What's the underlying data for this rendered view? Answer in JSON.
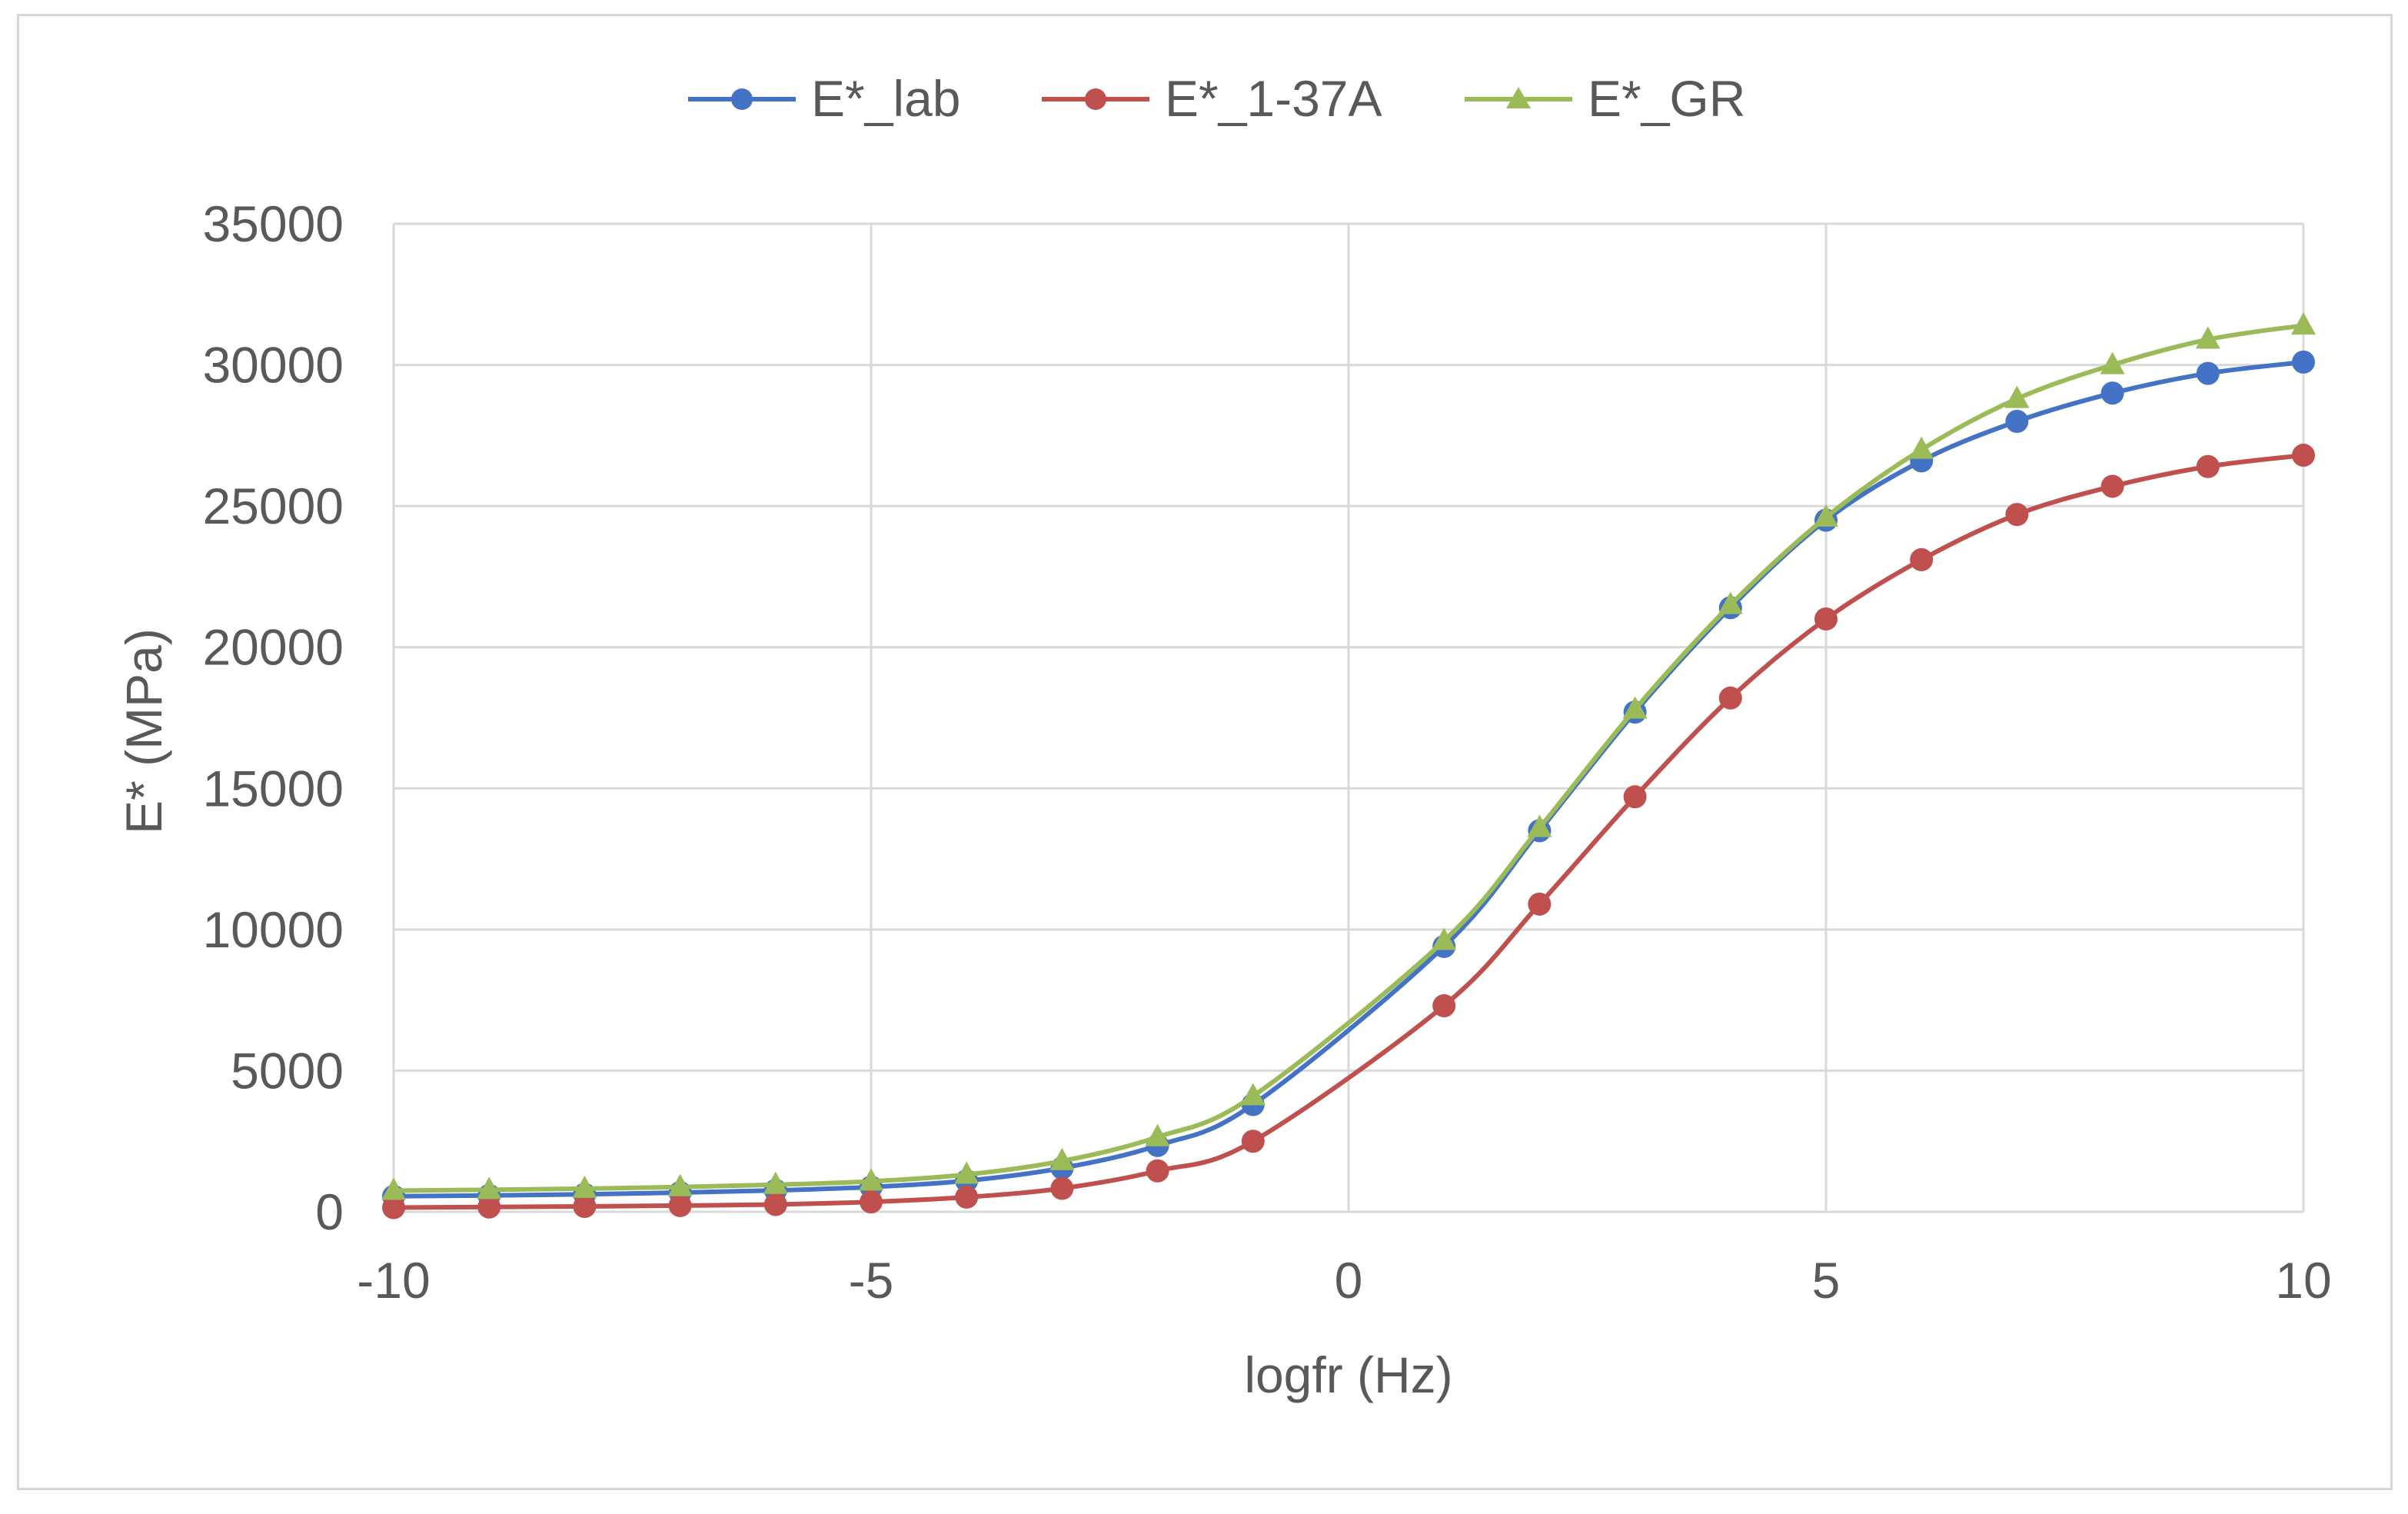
{
  "chart_data": {
    "type": "line",
    "title": "",
    "xlabel": "logfr (Hz)",
    "ylabel": "E* (MPa)",
    "xlim": [
      -10,
      10
    ],
    "ylim": [
      0,
      35000
    ],
    "xticks": [
      -10,
      -5,
      0,
      5,
      10
    ],
    "yticks": [
      0,
      5000,
      10000,
      15000,
      20000,
      25000,
      30000,
      35000
    ],
    "x_tick_labels": [
      "-10",
      "-5",
      "0",
      "5",
      "10"
    ],
    "y_tick_labels": [
      "0",
      "5000",
      "10000",
      "15000",
      "20000",
      "25000",
      "30000",
      "35000"
    ],
    "grid": true,
    "legend_position": "top-center",
    "x": [
      -10,
      -9,
      -8,
      -7,
      -6,
      -5,
      -4,
      -3,
      -2,
      -1,
      1,
      2,
      3,
      4,
      5,
      6,
      7,
      8,
      9,
      10
    ],
    "series": [
      {
        "name": "E*_lab",
        "color": "#4472c4",
        "marker": "circle",
        "values": [
          550,
          580,
          620,
          680,
          760,
          880,
          1100,
          1550,
          2350,
          3800,
          9400,
          13500,
          17700,
          21400,
          24500,
          26600,
          28000,
          29000,
          29700,
          30100
        ]
      },
      {
        "name": "E*_1-37A",
        "color": "#c0504d",
        "marker": "circle",
        "values": [
          150,
          170,
          190,
          220,
          260,
          350,
          520,
          830,
          1450,
          2500,
          7300,
          10900,
          14700,
          18200,
          21000,
          23100,
          24700,
          25700,
          26400,
          26800
        ]
      },
      {
        "name": "E*_GR",
        "color": "#9bbb59",
        "marker": "triangle",
        "values": [
          750,
          780,
          820,
          880,
          960,
          1080,
          1320,
          1800,
          2650,
          4100,
          9600,
          13600,
          17800,
          21500,
          24600,
          27000,
          28800,
          30000,
          30900,
          31400
        ]
      }
    ]
  }
}
